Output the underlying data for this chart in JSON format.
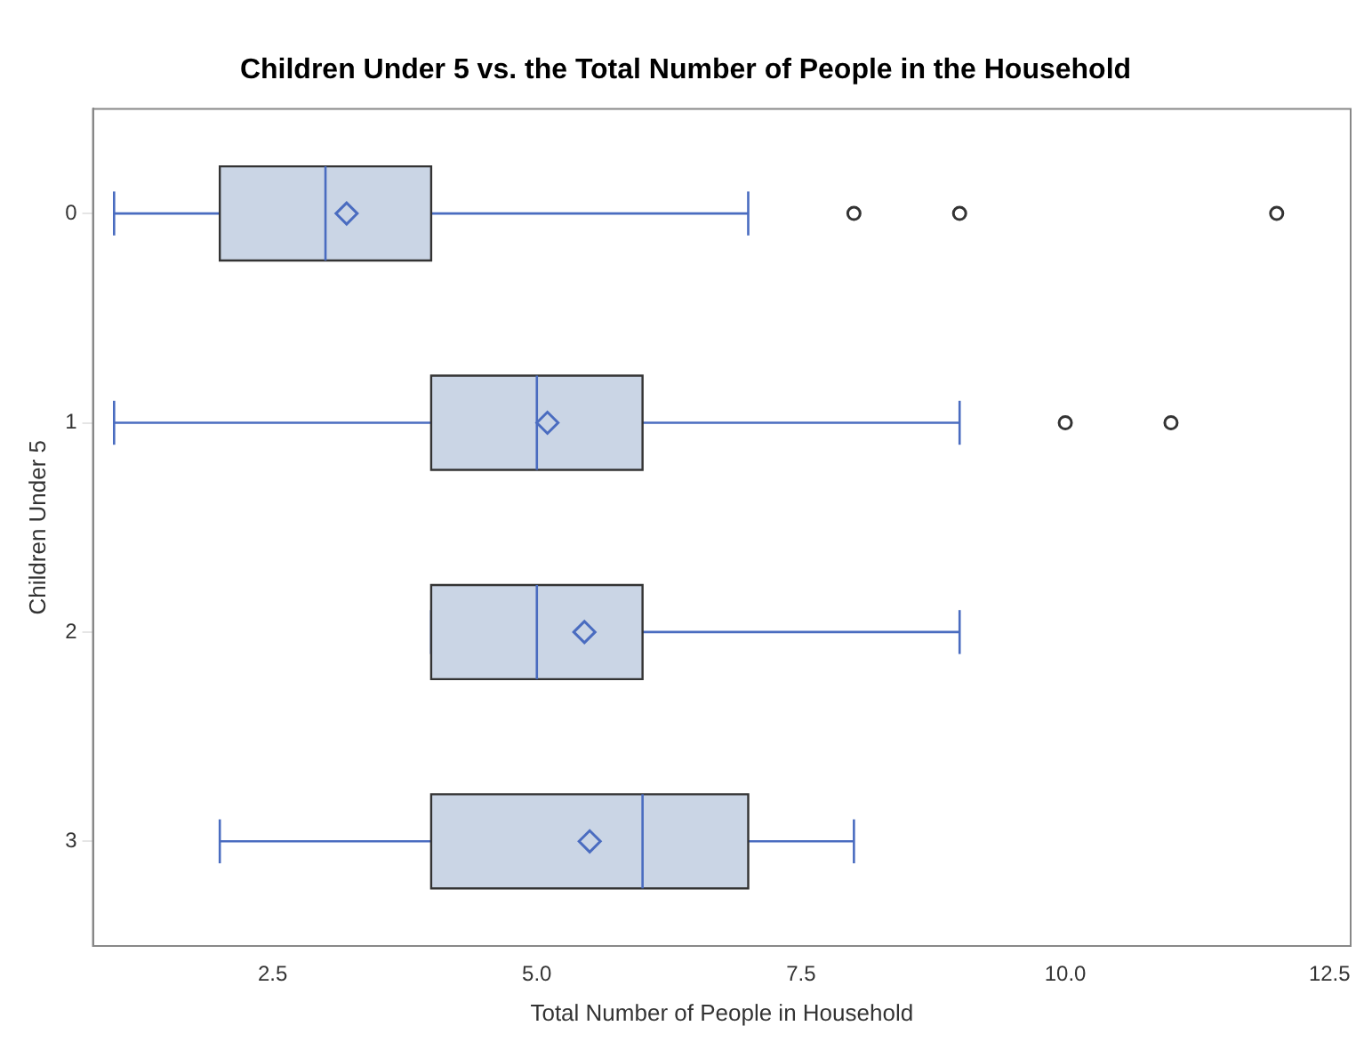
{
  "chart_data": {
    "type": "box",
    "orientation": "horizontal",
    "title": "Children Under 5 vs. the Total Number of People in the Household",
    "xlabel": "Total Number of People in Household",
    "ylabel": "Children Under 5",
    "categories": [
      "0",
      "1",
      "2",
      "3"
    ],
    "boxes": [
      {
        "low": 1,
        "q1": 2,
        "median": 3,
        "q3": 4,
        "high": 7,
        "mean": 3.2,
        "outliers": [
          8,
          9,
          12
        ]
      },
      {
        "low": 1,
        "q1": 4,
        "median": 5,
        "q3": 6,
        "high": 9,
        "mean": 5.1,
        "outliers": [
          10,
          11
        ]
      },
      {
        "low": 4,
        "q1": 4,
        "median": 5,
        "q3": 6,
        "high": 9,
        "mean": 5.45
      },
      {
        "low": 2,
        "q1": 4,
        "median": 6,
        "q3": 7,
        "high": 8,
        "mean": 5.5
      }
    ],
    "color": "#cad5e5",
    "xlim": [
      0.8,
      12.7
    ],
    "xticks": [
      {
        "value": 2.5,
        "label": "2.5"
      },
      {
        "value": 5,
        "label": "5.0"
      },
      {
        "value": 7.5,
        "label": "7.5"
      },
      {
        "value": 10,
        "label": "10.0"
      },
      {
        "value": 12.5,
        "label": "12.5"
      }
    ],
    "grid": false,
    "legend": false
  }
}
